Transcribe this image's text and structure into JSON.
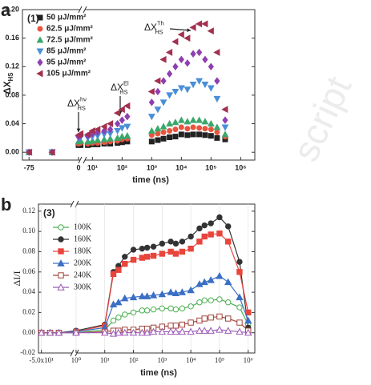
{
  "chart_data": [
    {
      "type": "scatter",
      "panel_label": "a",
      "inset_label": "(1)",
      "y_label": {
        "main": "ΔX",
        "sub": "HS"
      },
      "x_label": "time (ns)",
      "annotations": [
        {
          "main": "ΔX",
          "sub": "HS",
          "sup": "hν"
        },
        {
          "main": "ΔX",
          "sub": "HS",
          "sup": "El"
        },
        {
          "main": "ΔX",
          "sub": "HS",
          "sup": "Th"
        }
      ],
      "x": [
        -75,
        -40,
        0,
        4,
        7,
        10,
        15,
        25,
        40,
        70,
        100,
        150,
        1000,
        1600,
        2500,
        4000,
        6300,
        10000,
        16000,
        25000,
        40000,
        63000,
        100000,
        160000,
        300000
      ],
      "xlim": [
        -85,
        3000000
      ],
      "ylim": [
        -0.011,
        0.2
      ],
      "xticks": [
        -75,
        0,
        {
          "value": 10,
          "label": "10¹"
        },
        {
          "value": 100,
          "label": "10²"
        },
        {
          "value": 1000,
          "label": "10³"
        },
        {
          "value": 10000,
          "label": "10⁴"
        },
        {
          "value": 100000,
          "label": "10⁵"
        },
        {
          "value": 1000000,
          "label": "10⁶"
        }
      ],
      "yticks": [
        {
          "value": 0,
          "label": "0.00"
        },
        0.04,
        0.08,
        0.12,
        0.16,
        {
          "value": 0.2,
          "label": "0.20"
        }
      ],
      "series": [
        {
          "name": "50 μJ/mm²",
          "color": "#222222",
          "marker": "square",
          "filled": true,
          "values": [
            0,
            0,
            0.01,
            0.01,
            0.01,
            0.011,
            0.011,
            0.012,
            0.012,
            0.013,
            0.014,
            0.015,
            0.015,
            0.017,
            0.019,
            0.021,
            0.022,
            0.025,
            0.024,
            0.025,
            0.025,
            0.024,
            0.023,
            0.02,
            0.018
          ]
        },
        {
          "name": "62.5 μJ/mm²",
          "color": "#e8553e",
          "marker": "circle",
          "filled": true,
          "values": [
            0,
            0,
            0.012,
            0.013,
            0.012,
            0.013,
            0.013,
            0.014,
            0.015,
            0.016,
            0.018,
            0.019,
            0.024,
            0.026,
            0.028,
            0.03,
            0.032,
            0.035,
            0.033,
            0.035,
            0.034,
            0.033,
            0.032,
            0.028,
            0.022
          ]
        },
        {
          "name": "72.5 μJ/mm²",
          "color": "#3aa86b",
          "marker": "tri-up",
          "filled": true,
          "values": [
            0,
            0,
            0.015,
            0.016,
            0.015,
            0.016,
            0.017,
            0.018,
            0.019,
            0.02,
            0.022,
            0.023,
            0.03,
            0.033,
            0.036,
            0.04,
            0.042,
            0.045,
            0.043,
            0.045,
            0.045,
            0.043,
            0.04,
            0.035,
            0.025
          ]
        },
        {
          "name": "85 μJ/mm²",
          "color": "#4a8fd6",
          "marker": "tri-down",
          "filled": true,
          "values": [
            0,
            0,
            0.02,
            0.021,
            0.02,
            0.022,
            0.023,
            0.025,
            0.026,
            0.03,
            0.034,
            0.036,
            0.05,
            0.06,
            0.07,
            0.08,
            0.085,
            0.09,
            0.088,
            0.095,
            0.1,
            0.095,
            0.09,
            0.075,
            0.035
          ]
        },
        {
          "name": "95 μJ/mm²",
          "color": "#8e3fb0",
          "marker": "diamond",
          "filled": true,
          "values": [
            0,
            0,
            0.022,
            0.024,
            0.023,
            0.026,
            0.028,
            0.03,
            0.032,
            0.04,
            0.045,
            0.05,
            0.07,
            0.085,
            0.1,
            0.11,
            0.12,
            0.13,
            0.125,
            0.138,
            0.14,
            0.13,
            0.12,
            0.1,
            0.045
          ]
        },
        {
          "name": "105 μJ/mm²",
          "color": "#a2304e",
          "marker": "tri-left",
          "filled": true,
          "values": [
            0,
            0,
            0.024,
            0.026,
            0.025,
            0.03,
            0.032,
            0.036,
            0.04,
            0.055,
            0.06,
            0.065,
            0.085,
            0.1,
            0.13,
            0.14,
            0.155,
            0.165,
            0.16,
            0.175,
            0.18,
            0.18,
            0.17,
            0.14,
            0.06
          ]
        }
      ]
    },
    {
      "type": "line",
      "panel_label": "b",
      "inset_label": "(3)",
      "y_label": "ΔI/I",
      "x_label": "time (ns)",
      "grid": true,
      "watermark": "script",
      "x": [
        -50,
        -35,
        -20,
        1,
        10,
        20,
        30,
        50,
        100,
        200,
        300,
        500,
        1000,
        2000,
        3000,
        5000,
        10000,
        20000,
        30000,
        50000,
        100000,
        200000,
        500000,
        1000000
      ],
      "xlim": [
        -55,
        1700000
      ],
      "ylim": [
        -0.02,
        0.127
      ],
      "xticks": [
        {
          "value": -50,
          "label": "-5.0x10¹"
        },
        {
          "value": 1,
          "label": "10⁰"
        },
        {
          "value": 10,
          "label": "10¹"
        },
        {
          "value": 100,
          "label": "10²"
        },
        {
          "value": 1000,
          "label": "10³"
        },
        {
          "value": 10000,
          "label": "10⁴"
        },
        {
          "value": 100000,
          "label": "10⁵"
        },
        {
          "value": 1000000,
          "label": "10⁶"
        }
      ],
      "yticks": [
        -0.02,
        {
          "value": 0,
          "label": "0.00"
        },
        0.02,
        0.04,
        0.06,
        0.08,
        {
          "value": 0.1,
          "label": "0.10"
        },
        0.12
      ],
      "series": [
        {
          "name": "100K",
          "color": "#4caf50",
          "marker": "circle",
          "filled": false,
          "values": [
            0,
            0,
            0,
            0,
            0.003,
            0.012,
            0.015,
            0.018,
            0.02,
            0.022,
            0.022,
            0.023,
            0.024,
            0.024,
            0.023,
            0.024,
            0.026,
            0.03,
            0.032,
            0.032,
            0.033,
            0.03,
            0.025,
            0.008
          ]
        },
        {
          "name": "160K",
          "color": "#333333",
          "marker": "circle",
          "filled": true,
          "values": [
            0,
            0,
            0,
            0.002,
            0.008,
            0.06,
            0.066,
            0.075,
            0.082,
            0.083,
            0.084,
            0.085,
            0.088,
            0.09,
            0.088,
            0.09,
            0.095,
            0.103,
            0.106,
            0.108,
            0.114,
            0.105,
            0.07,
            0.005
          ]
        },
        {
          "name": "180K",
          "color": "#e8453c",
          "marker": "square",
          "filled": true,
          "values": [
            0,
            0,
            0,
            0.001,
            0.007,
            0.058,
            0.062,
            0.068,
            0.072,
            0.074,
            0.075,
            0.076,
            0.078,
            0.08,
            0.078,
            0.08,
            0.083,
            0.09,
            0.095,
            0.097,
            0.098,
            0.09,
            0.06,
            0.02
          ]
        },
        {
          "name": "200K",
          "color": "#3a6fc4",
          "marker": "tri-up",
          "filled": true,
          "values": [
            0,
            0,
            0,
            0.001,
            0.005,
            0.028,
            0.03,
            0.034,
            0.035,
            0.036,
            0.036,
            0.037,
            0.038,
            0.04,
            0.039,
            0.04,
            0.042,
            0.048,
            0.05,
            0.052,
            0.056,
            0.05,
            0.035,
            0.012
          ]
        },
        {
          "name": "240K",
          "color": "#a0443a",
          "marker": "square",
          "filled": false,
          "values": [
            0,
            0,
            0,
            0,
            0.001,
            0.002,
            0.002,
            0.003,
            0.003,
            0.004,
            0.004,
            0.005,
            0.006,
            0.007,
            0.007,
            0.008,
            0.01,
            0.012,
            0.014,
            0.015,
            0.016,
            0.014,
            0.01,
            0.002
          ]
        },
        {
          "name": "300K",
          "color": "#9b59b6",
          "marker": "tri-up",
          "filled": false,
          "values": [
            0,
            0,
            0,
            0,
            0,
            -0.001,
            0,
            0,
            0,
            0,
            0,
            0.001,
            0.001,
            0.001,
            0.001,
            0.001,
            0.001,
            0.002,
            0.002,
            0.002,
            0.003,
            0.002,
            0.001,
            0
          ]
        }
      ]
    }
  ]
}
